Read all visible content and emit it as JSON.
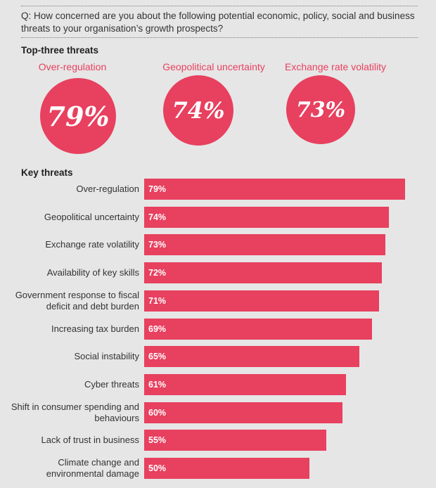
{
  "question": "Q: How concerned are you about the following potential economic, policy, social and business threats to your organisation’s growth prospects?",
  "top_three": {
    "heading": "Top-three threats",
    "items": [
      {
        "label": "Over-regulation",
        "value_label": "79%"
      },
      {
        "label": "Geopolitical uncertainty",
        "value_label": "74%"
      },
      {
        "label": "Exchange rate volatility",
        "value_label": "73%"
      }
    ]
  },
  "colors": {
    "accent": "#e8405f",
    "background": "#e6e6e6"
  },
  "chart_data": {
    "type": "bar",
    "orientation": "horizontal",
    "title": "Key threats",
    "xlabel": "",
    "ylabel": "",
    "xlim": [
      0,
      100
    ],
    "categories": [
      "Over-regulation",
      "Geopolitical uncertainty",
      "Exchange rate volatility",
      "Availability of key skills",
      "Government response to fiscal deficit and debt burden",
      "Increasing tax burden",
      "Social instability",
      "Cyber threats",
      "Shift in consumer spending and behaviours",
      "Lack of trust in business",
      "Climate change and environmental damage"
    ],
    "values": [
      79,
      74,
      73,
      72,
      71,
      69,
      65,
      61,
      60,
      55,
      50
    ],
    "value_labels": [
      "79%",
      "74%",
      "73%",
      "72%",
      "71%",
      "69%",
      "65%",
      "61%",
      "60%",
      "55%",
      "50%"
    ]
  }
}
